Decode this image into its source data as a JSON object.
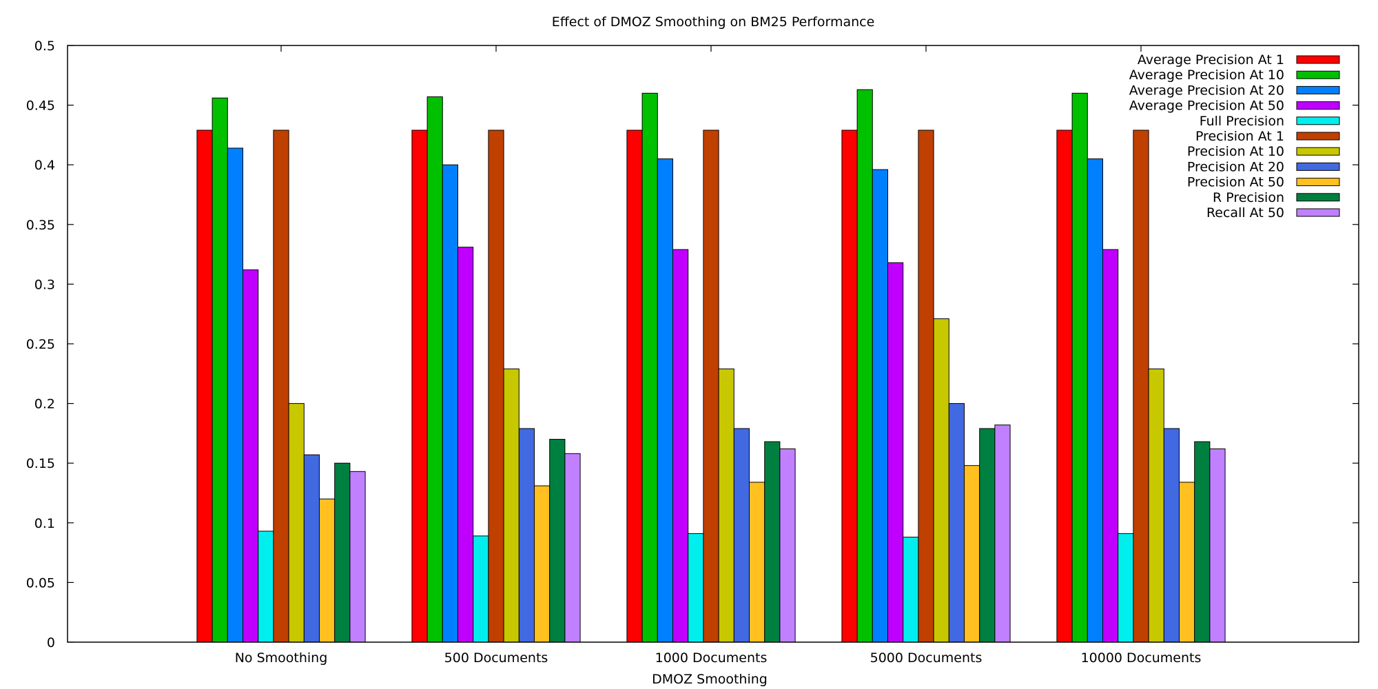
{
  "chart_data": {
    "type": "bar",
    "title": "Effect of DMOZ Smoothing on BM25 Performance",
    "xlabel": "DMOZ Smoothing",
    "ylabel": "",
    "ylim": [
      0,
      0.5
    ],
    "yticks": [
      "0",
      "0.05",
      "0.1",
      "0.15",
      "0.2",
      "0.25",
      "0.3",
      "0.35",
      "0.4",
      "0.45",
      "0.5"
    ],
    "grid": false,
    "legend_position": "top-right",
    "categories": [
      "No Smoothing",
      "500 Documents",
      "1000 Documents",
      "5000 Documents",
      "10000 Documents"
    ],
    "series": [
      {
        "name": "Average Precision At 1",
        "color": "#ff0000",
        "values": [
          0.429,
          0.429,
          0.429,
          0.429,
          0.429
        ]
      },
      {
        "name": "Average Precision At 10",
        "color": "#00c000",
        "values": [
          0.456,
          0.457,
          0.46,
          0.463,
          0.46
        ]
      },
      {
        "name": "Average Precision At 20",
        "color": "#0080ff",
        "values": [
          0.414,
          0.4,
          0.405,
          0.396,
          0.405
        ]
      },
      {
        "name": "Average Precision At 50",
        "color": "#c000ff",
        "values": [
          0.312,
          0.331,
          0.329,
          0.318,
          0.329
        ]
      },
      {
        "name": "Full Precision",
        "color": "#00eeee",
        "values": [
          0.093,
          0.089,
          0.091,
          0.088,
          0.091
        ]
      },
      {
        "name": "Precision At 1",
        "color": "#c04000",
        "values": [
          0.429,
          0.429,
          0.429,
          0.429,
          0.429
        ]
      },
      {
        "name": "Precision At 10",
        "color": "#c8c800",
        "values": [
          0.2,
          0.229,
          0.229,
          0.271,
          0.229
        ]
      },
      {
        "name": "Precision At 20",
        "color": "#4169e1",
        "values": [
          0.157,
          0.179,
          0.179,
          0.2,
          0.179
        ]
      },
      {
        "name": "Precision At 50",
        "color": "#ffc020",
        "values": [
          0.12,
          0.131,
          0.134,
          0.148,
          0.134
        ]
      },
      {
        "name": "R Precision",
        "color": "#008040",
        "values": [
          0.15,
          0.17,
          0.168,
          0.179,
          0.168
        ]
      },
      {
        "name": "Recall At 50",
        "color": "#c080ff",
        "values": [
          0.143,
          0.158,
          0.162,
          0.182,
          0.162
        ]
      }
    ]
  }
}
